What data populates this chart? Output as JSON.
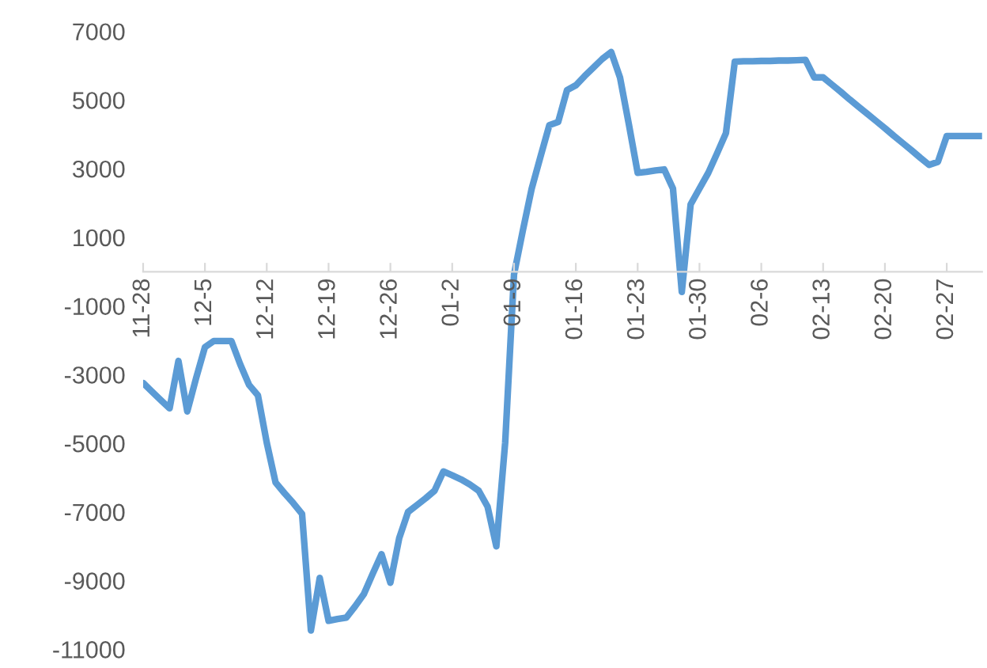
{
  "chart_data": {
    "type": "line",
    "categories": [
      "11-28",
      null,
      null,
      null,
      null,
      null,
      null,
      "12-5",
      null,
      null,
      null,
      null,
      null,
      null,
      "12-12",
      null,
      null,
      null,
      null,
      null,
      null,
      "12-19",
      null,
      null,
      null,
      null,
      null,
      null,
      "12-26",
      null,
      null,
      null,
      null,
      null,
      null,
      "01-2",
      null,
      null,
      null,
      null,
      null,
      null,
      "01-9",
      null,
      null,
      null,
      null,
      null,
      null,
      "01-16",
      null,
      null,
      null,
      null,
      null,
      null,
      "01-23",
      null,
      null,
      null,
      null,
      null,
      null,
      "01-30",
      null,
      null,
      null,
      null,
      null,
      null,
      "02-6",
      null,
      null,
      null,
      null,
      null,
      null,
      "02-13",
      null,
      null,
      null,
      null,
      null,
      null,
      "02-20",
      null,
      null,
      null,
      null,
      null,
      null,
      "02-27",
      null,
      null,
      null,
      null
    ],
    "series": [
      {
        "color": "#5b9bd5",
        "values": [
          -3240,
          -3490,
          -3740,
          -3980,
          -2600,
          -4070,
          -3100,
          -2200,
          -2020,
          -2020,
          -2020,
          -2700,
          -3300,
          -3600,
          -4980,
          -6140,
          -6450,
          -6740,
          -7060,
          -10450,
          -8920,
          -10170,
          -10120,
          -10080,
          -9750,
          -9390,
          -8800,
          -8230,
          -9060,
          -7760,
          -7000,
          -6800,
          -6600,
          -6380,
          -5820,
          -5930,
          -6050,
          -6200,
          -6380,
          -6840,
          -8000,
          -4980,
          -80,
          1200,
          2420,
          3350,
          4270,
          4360,
          5290,
          5430,
          5700,
          5950,
          6200,
          6400,
          5660,
          4300,
          2880,
          2910,
          2950,
          2980,
          2420,
          -590,
          1960,
          2420,
          2880,
          3450,
          4040,
          6120,
          6130,
          6130,
          6140,
          6140,
          6150,
          6150,
          6160,
          6170,
          5660,
          5660,
          5450,
          5240,
          5020,
          4810,
          4600,
          4390,
          4180,
          3960,
          3750,
          3540,
          3320,
          3110,
          3200,
          3950,
          3950,
          3950,
          3950,
          3950
        ]
      }
    ],
    "ylim": [
      -11000,
      7000
    ],
    "yticks": [
      -11000,
      -9000,
      -7000,
      -5000,
      -3000,
      -1000,
      1000,
      3000,
      5000,
      7000
    ],
    "grid": false,
    "legend": false,
    "marker": "none",
    "line_style": "solid"
  }
}
